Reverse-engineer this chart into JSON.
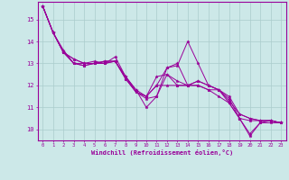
{
  "xlabel": "Windchill (Refroidissement éolien,°C)",
  "background_color": "#cce8e8",
  "line_color": "#990099",
  "grid_color": "#aacccc",
  "xlim": [
    -0.5,
    23.5
  ],
  "ylim": [
    9.5,
    15.8
  ],
  "yticks": [
    10,
    11,
    12,
    13,
    14,
    15
  ],
  "xticks": [
    0,
    1,
    2,
    3,
    4,
    5,
    6,
    7,
    8,
    9,
    10,
    11,
    12,
    13,
    14,
    15,
    16,
    17,
    18,
    19,
    20,
    21,
    22,
    23
  ],
  "series": [
    [
      15.6,
      14.4,
      13.6,
      13.0,
      13.0,
      13.1,
      13.0,
      13.3,
      12.4,
      11.8,
      11.0,
      11.5,
      12.8,
      12.9,
      14.0,
      13.0,
      12.0,
      11.8,
      11.2,
      10.5,
      9.7,
      10.3,
      10.3,
      10.3
    ],
    [
      15.6,
      14.4,
      13.5,
      13.2,
      13.0,
      13.0,
      13.1,
      13.1,
      12.4,
      11.8,
      11.5,
      12.0,
      12.0,
      12.0,
      12.0,
      12.0,
      11.8,
      11.5,
      11.2,
      10.5,
      10.4,
      10.4,
      10.4,
      10.3
    ],
    [
      15.6,
      14.4,
      13.5,
      13.2,
      13.0,
      13.0,
      13.1,
      13.1,
      12.4,
      11.7,
      11.4,
      11.5,
      12.5,
      12.2,
      12.0,
      12.2,
      12.0,
      11.8,
      11.4,
      10.5,
      9.8,
      10.3,
      10.4,
      10.3
    ],
    [
      15.6,
      14.4,
      13.5,
      13.0,
      12.9,
      13.0,
      13.0,
      13.1,
      12.3,
      11.7,
      11.5,
      12.4,
      12.5,
      12.0,
      12.0,
      12.0,
      11.8,
      11.8,
      11.3,
      10.7,
      10.5,
      10.4,
      10.4,
      10.3
    ],
    [
      15.6,
      14.4,
      13.5,
      13.0,
      12.9,
      13.0,
      13.0,
      13.1,
      12.3,
      11.7,
      11.5,
      12.0,
      12.8,
      13.0,
      12.0,
      12.2,
      12.0,
      11.8,
      11.5,
      10.7,
      10.5,
      10.4,
      10.4,
      10.3
    ]
  ]
}
